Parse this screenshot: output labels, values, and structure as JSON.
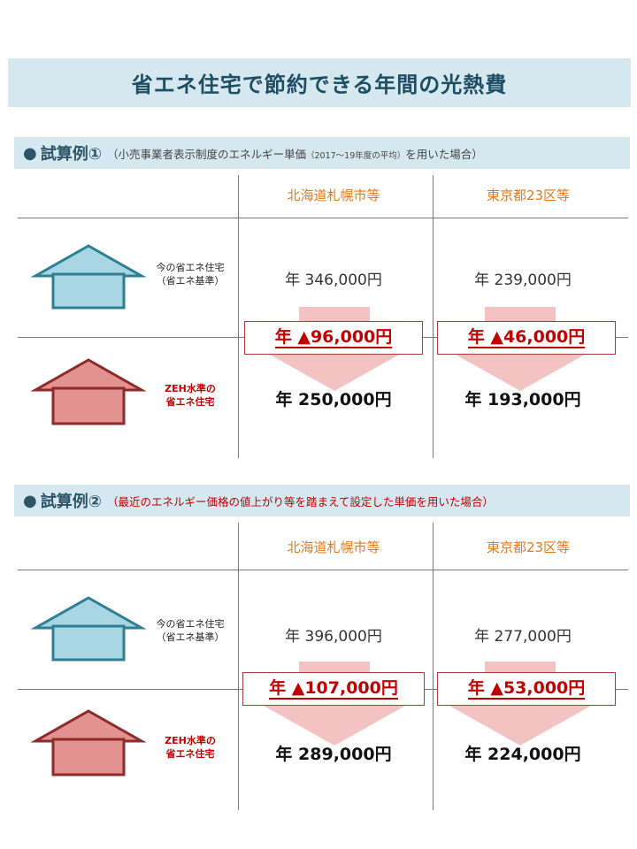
{
  "title": "省エネ住宅で節約できる年間の光熱費",
  "columns": [
    "北海道札幌市等",
    "東京都23区等"
  ],
  "house_labels": {
    "current_line1": "今の省エネ住宅",
    "current_line2": "（省エネ基準）",
    "zeh_line1": "ZEH水準の",
    "zeh_line2": "省エネ住宅"
  },
  "colors": {
    "header_bg": "#d5e8f0",
    "title_text": "#1f4e63",
    "column_head": "#e07a1f",
    "accent_red": "#c00000",
    "house_blue": "#a9d6e3",
    "house_blue_stroke": "#2e7f93",
    "house_red": "#e39292",
    "house_red_stroke": "#8e2a2a",
    "arrow_pink": "#f3c2c2"
  },
  "sections": [
    {
      "bullet": "●",
      "label": "試算例①",
      "note_main": "（小売事業者表示制度のエネルギー単価",
      "note_small": "（2017〜19年度の平均）",
      "note_tail": "を用いた場合）",
      "before": [
        "年 346,000円",
        "年 239,000円"
      ],
      "savings": [
        "年 ▲96,000円",
        "年 ▲46,000円"
      ],
      "after": [
        "年 250,000円",
        "年 193,000円"
      ]
    },
    {
      "bullet": "●",
      "label": "試算例②",
      "note_main": "（最近のエネルギー価格の値上がり等を踏まえて設定した単価を用いた場合）",
      "before": [
        "年 396,000円",
        "年 277,000円"
      ],
      "savings": [
        "年 ▲107,000円",
        "年 ▲53,000円"
      ],
      "after": [
        "年 289,000円",
        "年 224,000円"
      ]
    }
  ]
}
